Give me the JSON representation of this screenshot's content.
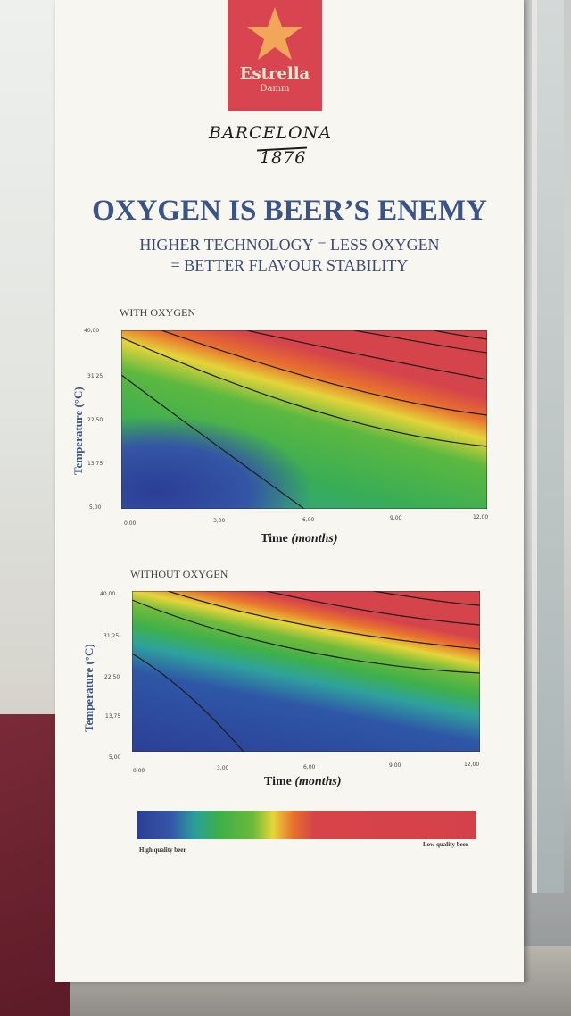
{
  "logo": {
    "name": "Estrella",
    "sub": "Damm"
  },
  "handwriting": {
    "line1": "BARCELONA",
    "line2": "1876"
  },
  "headline": "OXYGEN IS BEER’S ENEMY",
  "subline1": "HIGHER TECHNOLOGY  =  LESS OXYGEN",
  "subline2": "=  BETTER FLAVOUR STABILITY",
  "legend": {
    "low_end": "High quality beer",
    "high_end": "Low quality beer"
  },
  "colors": {
    "brand_red": "#d84450",
    "title_blue": "#3a5486",
    "scale_blue": "#2c3e97",
    "scale_green": "#3caf49",
    "scale_yellow": "#e6d63b",
    "scale_red": "#d4414a"
  },
  "chart_data": [
    {
      "type": "heatmap",
      "title": "WITH OXYGEN",
      "xlabel_main": "Time",
      "xlabel_unit": "(months)",
      "ylabel": "Temperature (°C)",
      "x_ticks": [
        "0,00",
        "3,00",
        "6,00",
        "9,00",
        "12,00"
      ],
      "y_ticks": [
        "40,00",
        "31,25",
        "22,50",
        "13,75",
        "5,00"
      ],
      "xlim": [
        0,
        12
      ],
      "ylim": [
        5,
        40
      ],
      "colorscale": "blue (high quality) to red (low quality)"
    },
    {
      "type": "heatmap",
      "title": "WITHOUT OXYGEN",
      "xlabel_main": "Time",
      "xlabel_unit": "(months)",
      "ylabel": "Temperature (°C)",
      "x_ticks": [
        "0,00",
        "3,00",
        "6,00",
        "9,00",
        "12,00"
      ],
      "y_ticks": [
        "40,00",
        "31,25",
        "22,50",
        "13,75",
        "5,00"
      ],
      "xlim": [
        0,
        12
      ],
      "ylim": [
        5,
        40
      ],
      "colorscale": "blue (high quality) to red (low quality)"
    }
  ]
}
